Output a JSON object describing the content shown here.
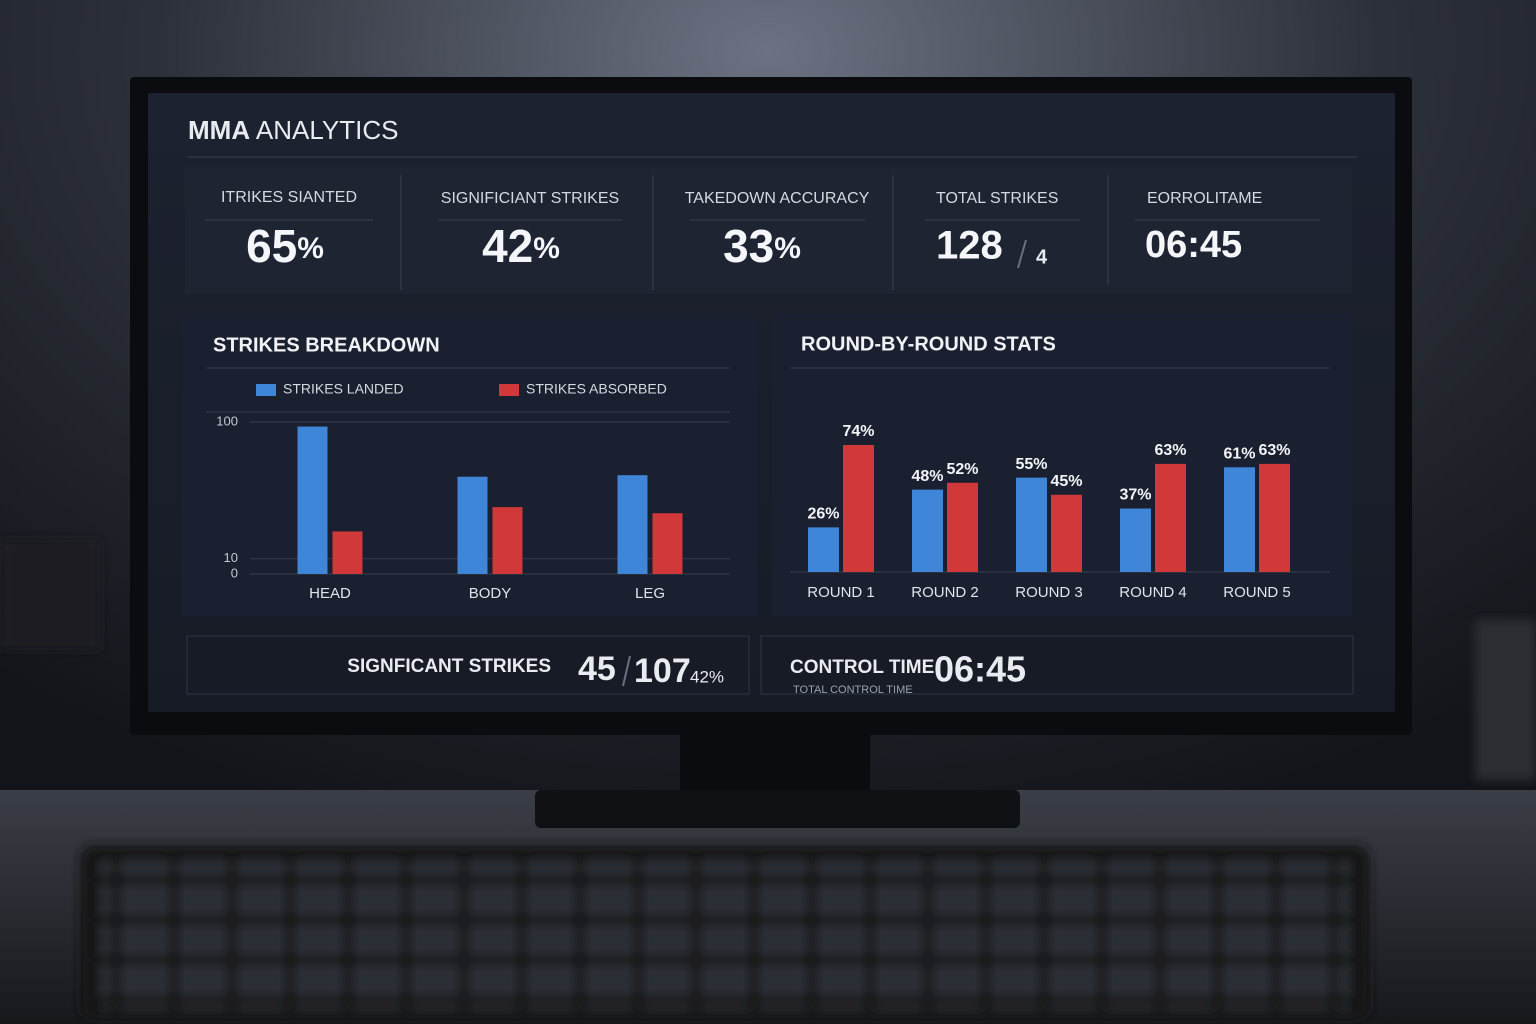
{
  "header": {
    "title_bold": "MMA",
    "title_rest": "ANALYTICS"
  },
  "kpis": [
    {
      "label": "ITRIKES SIANTED",
      "value": "65",
      "unit": "%"
    },
    {
      "label": "SIGNIFICIANT STRIKES",
      "value": "42",
      "unit": "%"
    },
    {
      "label": "TAKEDOWN ACCURACY",
      "value": "33",
      "unit": "%"
    },
    {
      "label": "TOTAL STRIKES",
      "value": "128",
      "sub": "4"
    },
    {
      "label": "EORROLITAME",
      "value": "06:45"
    }
  ],
  "chart_data": [
    {
      "type": "bar",
      "title": "STRIKES BREAKDOWN",
      "categories": [
        "HEAD",
        "BODY",
        "LEG"
      ],
      "series": [
        {
          "name": "STRIKES LANDED",
          "color": "#3f86d8",
          "values": [
            97,
            64,
            65
          ]
        },
        {
          "name": "STRIKES ABSORBED",
          "color": "#d0383a",
          "values": [
            28,
            44,
            40
          ]
        }
      ],
      "ylim": [
        0,
        100
      ],
      "yticks": [
        0,
        10,
        100
      ],
      "grid": true
    },
    {
      "type": "bar",
      "title": "ROUND-BY-ROUND STATS",
      "categories": [
        "ROUND 1",
        "ROUND 2",
        "ROUND 3",
        "ROUND 4",
        "ROUND 5"
      ],
      "series": [
        {
          "color": "#3f86d8",
          "values": [
            26,
            48,
            55,
            37,
            61
          ],
          "value_labels": [
            "26%",
            "48%",
            "55%",
            "37%",
            "61%"
          ]
        },
        {
          "color": "#d0383a",
          "values": [
            74,
            52,
            45,
            63,
            63
          ],
          "value_labels": [
            "74%",
            "52%",
            "45%",
            "63%",
            "63%"
          ]
        }
      ]
    }
  ],
  "summary": {
    "strikes": {
      "label": "SIGNFICANT STRIKES",
      "landed": "45",
      "attempted": "107",
      "pct": "42%"
    },
    "control": {
      "label": "CONTROL TIME",
      "value": "06:45",
      "caption": "TOTAL CONTROL TIME"
    }
  }
}
